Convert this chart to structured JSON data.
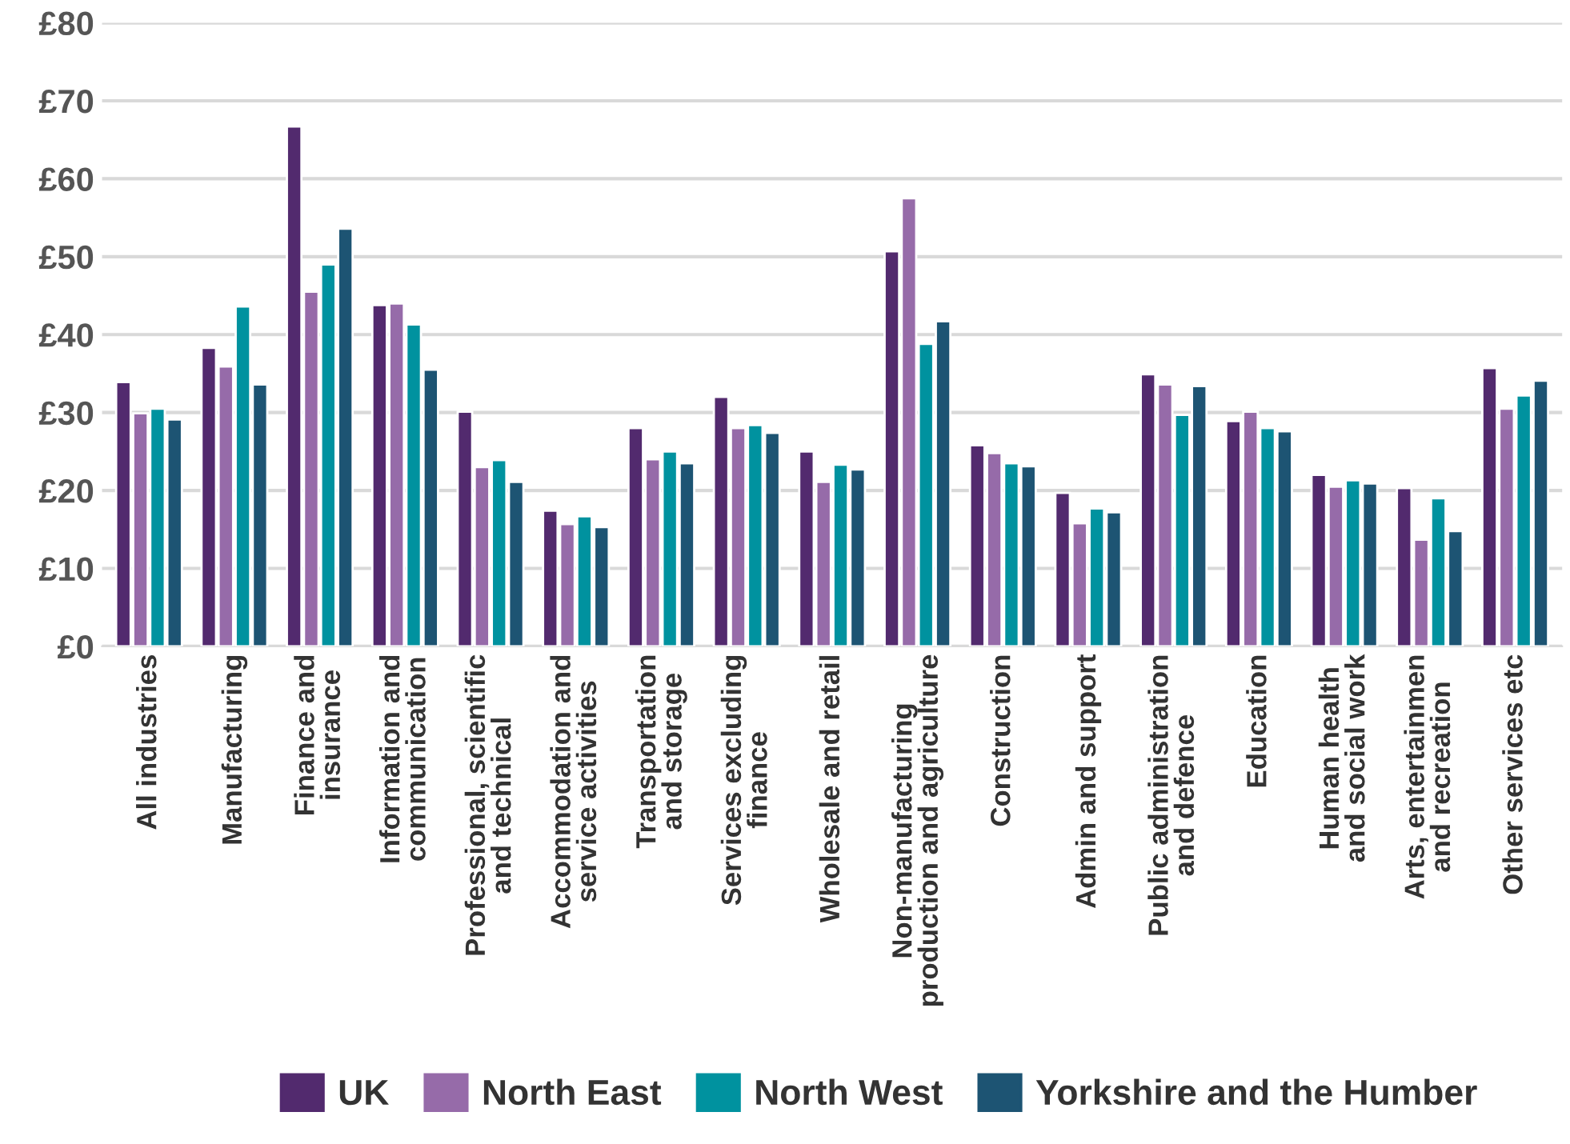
{
  "chart_data": {
    "type": "bar",
    "categories": [
      "All industries",
      "Manufacturing",
      "Finance and\ninsurance",
      "Information and\ncommunication",
      "Professional, scientific\nand technical",
      "Accommodation and\nservice activities",
      "Transportation\nand storage",
      "Services excluding\nfinance",
      "Wholesale and retail",
      "Non-manufacturing\nproduction and agriculture",
      "Construction",
      "Admin and support",
      "Public administration\nand defence",
      "Education",
      "Human health\nand social work",
      "Arts, entertainmen\nand recreation",
      "Other services etc"
    ],
    "series": [
      {
        "name": "UK",
        "color": "#522a6e",
        "values": [
          33.9,
          38.3,
          66.7,
          43.8,
          30.1,
          17.4,
          28.0,
          32.0,
          25.0,
          50.7,
          25.8,
          19.7,
          34.9,
          28.9,
          22.0,
          20.3,
          35.7
        ]
      },
      {
        "name": "North East",
        "color": "#966ba9",
        "values": [
          29.9,
          35.9,
          45.5,
          44.0,
          23.0,
          15.7,
          24.0,
          28.0,
          21.1,
          57.5,
          24.8,
          15.8,
          33.6,
          30.1,
          20.5,
          13.7,
          30.5
        ]
      },
      {
        "name": "North West",
        "color": "#00929f",
        "values": [
          30.5,
          43.6,
          49.0,
          41.3,
          23.9,
          16.7,
          25.0,
          28.4,
          23.3,
          38.8,
          23.5,
          17.7,
          29.7,
          28.0,
          21.3,
          19.0,
          32.2
        ]
      },
      {
        "name": "Yorkshire and the Humber",
        "color": "#1d5473",
        "values": [
          29.1,
          33.6,
          53.6,
          35.5,
          21.1,
          15.3,
          23.5,
          27.4,
          22.7,
          41.7,
          23.1,
          17.2,
          33.4,
          27.6,
          20.9,
          14.8,
          34.1
        ]
      }
    ],
    "ylim": [
      0,
      80
    ],
    "yticks": [
      {
        "value": 0,
        "label": "£0"
      },
      {
        "value": 10,
        "label": "£10"
      },
      {
        "value": 20,
        "label": "£20"
      },
      {
        "value": 30,
        "label": "£30"
      },
      {
        "value": 40,
        "label": "£40"
      },
      {
        "value": 50,
        "label": "£50"
      },
      {
        "value": 60,
        "label": "£60"
      },
      {
        "value": 70,
        "label": "£70"
      },
      {
        "value": 80,
        "label": "£80"
      }
    ],
    "grid": "y",
    "legend": "bottom"
  }
}
